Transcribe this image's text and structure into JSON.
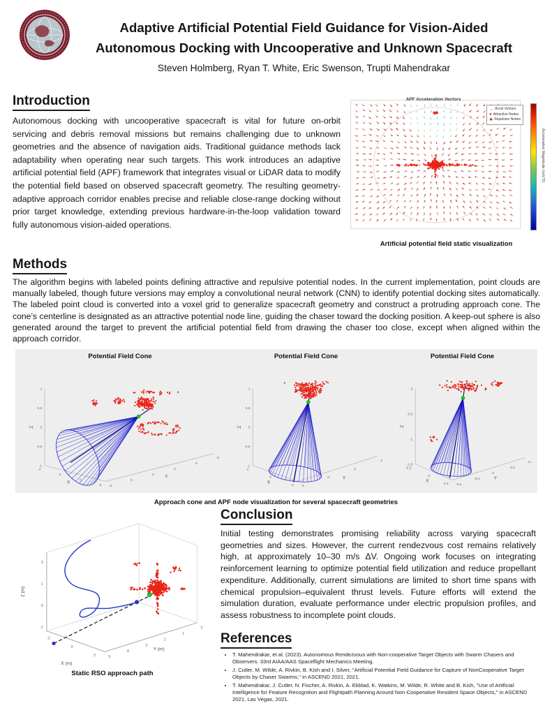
{
  "header": {
    "title_line1": "Adaptive Artificial Potential Field Guidance for Vision-Aided",
    "title_line2": "Autonomous Docking with Uncooperative and Unknown Spacecraft",
    "authors": "Steven Holmberg, Ryan T. White, Eric Swenson, Trupti Mahendrakar"
  },
  "introduction": {
    "heading": "Introduction",
    "body": "Autonomous docking with uncooperative spacecraft is vital for future on-orbit servicing and debris removal missions but remains challenging due to unknown geometries and the absence of navigation aids. Traditional guidance methods lack adaptability when operating near such targets. This work introduces an adaptive artificial potential field (APF) framework that integrates visual or LiDAR data to modify the potential field based on observed spacecraft geometry. The resulting geometry-adaptive approach corridor enables precise and reliable close-range docking without prior target knowledge, extending previous hardware-in-the-loop validation toward fully autonomous vision-aided operations."
  },
  "methods": {
    "heading": "Methods",
    "body": "The algorithm begins with labeled points defining attractive and repulsive potential nodes. In the current implementation, point clouds are manually labeled, though future versions may employ a convolutional neural network (CNN) to identify potential docking sites automatically. The labeled point cloud is converted into a voxel grid to generalize spacecraft geometry and construct a protruding approach cone. The cone’s centerline is designated as an attractive potential node line, guiding the chaser toward the docking position. A keep-out sphere is also generated around the target to prevent the artificial potential field from drawing the chaser too close, except when aligned within the approach corridor."
  },
  "conclusion": {
    "heading": "Conclusion",
    "body": "Initial testing demonstrates promising reliability across varying spacecraft geometries and sizes. However, the current rendezvous cost remains relatively high, at approximately 10–30 m/s ΔV. Ongoing work focuses on integrating reinforcement learning to optimize potential field utilization and reduce propellant expenditure. Additionally, current simulations are limited to short time spans with chemical propulsion–equivalent thrust levels. Future efforts will extend the simulation duration, evaluate performance under electric propulsion profiles, and assess robustness to incomplete point clouds."
  },
  "references": {
    "heading": "References",
    "items": [
      "T. Mahendrakar, et al. (2023). Autonomous Rendezvous with Non-cooperative Target Objects with Swarm Chasers and Observers. 33rd AIAA/AAS Spaceflight Mechanics Meeting.",
      "J. Cutler, M. Wilde, A. Rivkin, B. Kish and I. Silver, \"Artificial Potential Field Guidance for Capture of NonCooperative Target Objects by Chaser Swarms,\" in ASCEND 2021, 2021.",
      "T. Mahendrakar, J. Cutler, N. Fischer, A. Rivkin, A. Ekblad, K. Watkins, M. Wilde, R. White and B. Kish, \"Use of Artificial Intelligence for Feature Recognition and Flightpath Planning Around Non-Cooperative Resident Space Objects,\" in ASCEND 2021, Las Vegas, 2021."
    ]
  },
  "figures": {
    "apf_field": {
      "title": "APF Acceleration Vectors",
      "caption": "Artificial potential field static visualization",
      "colorbar_label": "Acceleration Magnitude (m/s^2)",
      "legend": [
        "Accel Vectors",
        "Attractive Nodes",
        "Repulsive Nodes"
      ]
    },
    "cone_panels": {
      "panel_title": "Potential Field Cone",
      "caption": "Approach cone and APF node visualization for several spacecraft geometries",
      "axis": {
        "x": "X",
        "y": "Y",
        "z": "Z"
      },
      "panel1": {
        "zticks": [
          "1",
          "0.5",
          "0",
          "-0.5",
          "-1"
        ],
        "xticks": [
          "4",
          "2",
          "0",
          "-2"
        ],
        "yticks": [
          "-2",
          "0",
          "2",
          "4",
          "6",
          "8"
        ]
      },
      "panel2": {
        "zticks": [
          "1",
          "0.5",
          "0",
          "-0.5",
          "-1"
        ],
        "xticks": [
          "2",
          "0",
          "-2"
        ],
        "yticks": [
          "-2",
          "0",
          "2",
          "4"
        ]
      },
      "panel3": {
        "zticks": [
          "0",
          "-0.5",
          "-1",
          "-1.5"
        ],
        "xticks": [
          "-0.2",
          "0",
          "0.2"
        ],
        "yticks": [
          "-0.4",
          "-0.2",
          "0",
          "0.2",
          "0.4"
        ]
      }
    },
    "approach_path": {
      "caption": "Static RSO approach path",
      "xlabel": "X (m)",
      "ylabel": "Y (m)",
      "zlabel": "Z (m)",
      "zticks": [
        "2",
        "1",
        "0",
        "-1"
      ],
      "xticks": [
        "-2",
        "0",
        "2"
      ],
      "yticks": [
        "5",
        "4",
        "3",
        "2",
        "1",
        "0"
      ]
    }
  },
  "colors": {
    "maroon": "#7a2030",
    "point_red": "#e8251a",
    "cone_blue": "#1c1ccf",
    "marker_green": "#21c521",
    "panel_bg": "#eeeeee"
  }
}
